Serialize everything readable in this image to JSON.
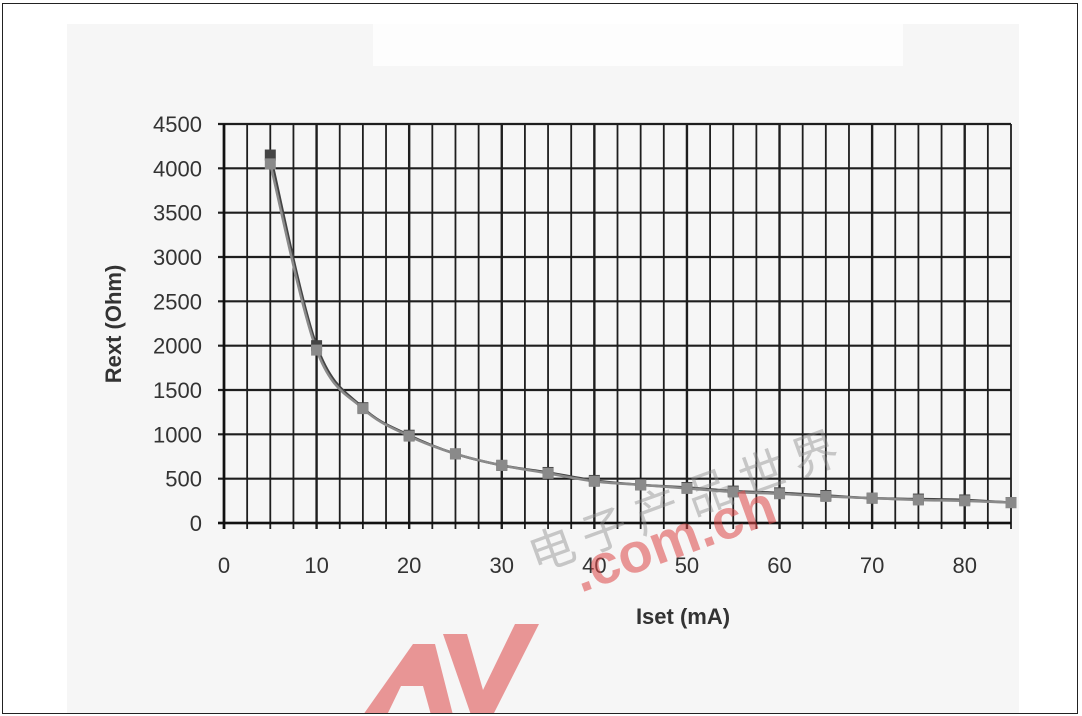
{
  "chart_data": {
    "type": "line",
    "title": "",
    "xlabel": "Iset (mA)",
    "ylabel": "Rext (Ohm)",
    "xlim": [
      0,
      85
    ],
    "ylim": [
      0,
      4500
    ],
    "x_ticks": [
      0,
      10,
      20,
      30,
      40,
      50,
      60,
      70,
      80
    ],
    "y_ticks": [
      0,
      500,
      1000,
      1500,
      2000,
      2500,
      3000,
      3500,
      4000,
      4500
    ],
    "grid": true,
    "legend": "none",
    "x": [
      5,
      10,
      15,
      20,
      25,
      30,
      35,
      40,
      45,
      50,
      55,
      60,
      65,
      70,
      75,
      80,
      85
    ],
    "series": [
      {
        "values": [
          4150,
          2000,
          1300,
          990,
          780,
          650,
          570,
          480,
          430,
          400,
          360,
          340,
          310,
          280,
          270,
          260,
          230
        ],
        "color": "#444444",
        "marker": "square"
      },
      {
        "values": [
          4050,
          1950,
          1290,
          980,
          780,
          650,
          560,
          470,
          430,
          390,
          350,
          330,
          300,
          280,
          260,
          250,
          230
        ],
        "color": "#8a8a8a",
        "marker": "square"
      }
    ]
  },
  "watermark": {
    "text": ".com.ch",
    "letters": "AV",
    "chinese": "电子产品世界",
    "color": "#dc4646"
  }
}
